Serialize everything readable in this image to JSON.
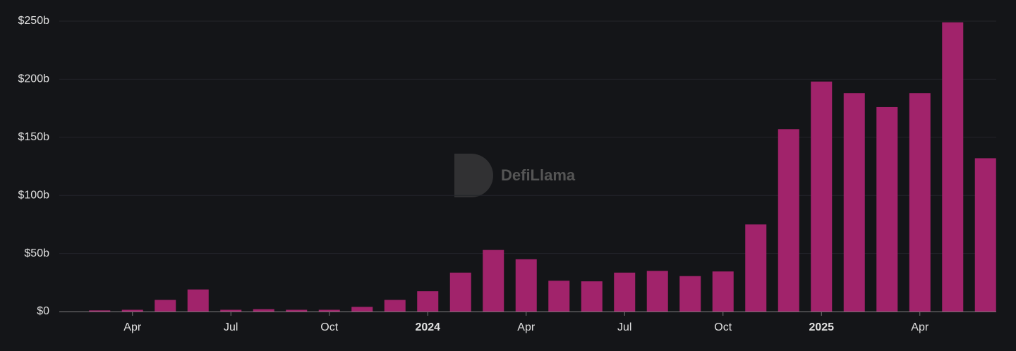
{
  "chart_data": {
    "type": "bar",
    "watermark": "DefiLlama",
    "categories": [
      null,
      "Apr",
      null,
      null,
      "Jul",
      null,
      null,
      "Oct",
      null,
      null,
      "2024",
      null,
      null,
      "Apr",
      null,
      null,
      "Jul",
      null,
      null,
      "Oct",
      null,
      null,
      "2025",
      null,
      null,
      "Apr",
      null,
      null
    ],
    "bold_categories": [
      "2024",
      "2025"
    ],
    "values": [
      1,
      1.5,
      10,
      19,
      1.5,
      2,
      1.5,
      1.5,
      4,
      10,
      17.5,
      33.5,
      53,
      45,
      26.5,
      26,
      33.5,
      35,
      30.5,
      34.5,
      75,
      157,
      198,
      188,
      176,
      188,
      249,
      132
    ],
    "color": "#a1236b",
    "ylim": [
      0,
      250
    ],
    "yticks": [
      {
        "value": 0,
        "label": "$0"
      },
      {
        "value": 50,
        "label": "$50b"
      },
      {
        "value": 100,
        "label": "$100b"
      },
      {
        "value": 150,
        "label": "$150b"
      },
      {
        "value": 200,
        "label": "$200b"
      },
      {
        "value": 250,
        "label": "$250b"
      }
    ],
    "grid": true
  }
}
